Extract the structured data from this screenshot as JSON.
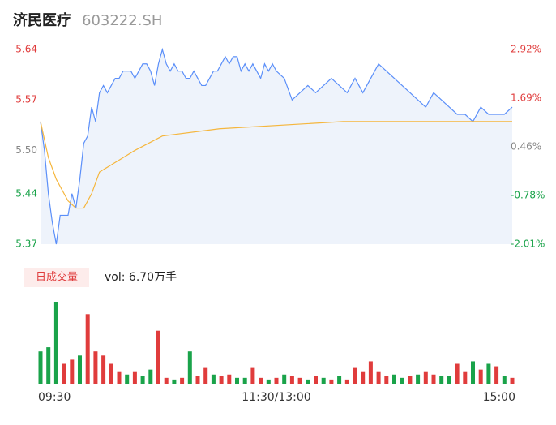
{
  "header": {
    "name": "济民医疗",
    "code": "603222.SH"
  },
  "chart_data": [
    {
      "type": "line",
      "xlim": [
        0,
        240
      ],
      "ylim": [
        5.37,
        5.64
      ],
      "yticks": [
        5.64,
        5.57,
        {
          "value": 5.5,
          "label": "5.50"
        },
        5.44,
        5.37
      ],
      "ytick_colors": [
        "#e03c3c",
        "#e03c3c",
        "#888888",
        "#1aa34a",
        "#1aa34a"
      ],
      "y2lim": [
        -2.01,
        2.92
      ],
      "y2ticks": [
        {
          "value": 2.92,
          "label": "2.92%"
        },
        {
          "value": 1.69,
          "label": "1.69%"
        },
        {
          "value": 0.46,
          "label": "0.46%"
        },
        {
          "value": -0.78,
          "label": "-0.78%"
        },
        {
          "value": -2.01,
          "label": "-2.01%"
        }
      ],
      "area_color": "#eef3fb",
      "series": [
        {
          "color": "#5b8ff9",
          "x": [
            0,
            2,
            4,
            6,
            8,
            10,
            12,
            14,
            16,
            18,
            20,
            22,
            24,
            26,
            28,
            30,
            32,
            34,
            36,
            38,
            40,
            42,
            44,
            46,
            48,
            50,
            52,
            54,
            56,
            58,
            60,
            62,
            64,
            66,
            68,
            70,
            72,
            74,
            76,
            78,
            80,
            82,
            84,
            86,
            88,
            90,
            92,
            94,
            96,
            98,
            100,
            102,
            104,
            106,
            108,
            110,
            112,
            114,
            116,
            118,
            120,
            124,
            128,
            132,
            136,
            140,
            144,
            148,
            152,
            156,
            160,
            164,
            168,
            172,
            176,
            180,
            184,
            188,
            192,
            196,
            200,
            204,
            208,
            212,
            216,
            220,
            224,
            228,
            232,
            236,
            240
          ],
          "values": [
            5.54,
            5.5,
            5.44,
            5.4,
            5.37,
            5.41,
            5.41,
            5.41,
            5.44,
            5.42,
            5.46,
            5.51,
            5.52,
            5.56,
            5.54,
            5.58,
            5.59,
            5.58,
            5.59,
            5.6,
            5.6,
            5.61,
            5.61,
            5.61,
            5.6,
            5.61,
            5.62,
            5.62,
            5.61,
            5.59,
            5.62,
            5.64,
            5.62,
            5.61,
            5.62,
            5.61,
            5.61,
            5.6,
            5.6,
            5.61,
            5.6,
            5.59,
            5.59,
            5.6,
            5.61,
            5.61,
            5.62,
            5.63,
            5.62,
            5.63,
            5.63,
            5.61,
            5.62,
            5.61,
            5.62,
            5.61,
            5.6,
            5.62,
            5.61,
            5.62,
            5.61,
            5.6,
            5.57,
            5.58,
            5.59,
            5.58,
            5.59,
            5.6,
            5.59,
            5.58,
            5.6,
            5.58,
            5.6,
            5.62,
            5.61,
            5.6,
            5.59,
            5.58,
            5.57,
            5.56,
            5.58,
            5.57,
            5.56,
            5.55,
            5.55,
            5.54,
            5.56,
            5.55,
            5.55,
            5.55,
            5.56
          ]
        },
        {
          "color": "#f5b63d",
          "x": [
            0,
            4,
            8,
            14,
            18,
            22,
            26,
            30,
            36,
            42,
            48,
            62,
            91,
            154,
            240
          ],
          "values": [
            5.54,
            5.49,
            5.46,
            5.43,
            5.42,
            5.42,
            5.44,
            5.47,
            5.48,
            5.49,
            5.5,
            5.52,
            5.53,
            5.54,
            5.54
          ]
        }
      ]
    },
    {
      "type": "bar",
      "title": "日成交量",
      "subtitle": "vol: 6.70万手",
      "xlim": [
        0,
        240
      ],
      "xticks": [
        {
          "value": 0,
          "label": "09:30"
        },
        {
          "value": 120,
          "label": "11:30/13:00"
        },
        {
          "value": 240,
          "label": "15:00"
        }
      ],
      "x": [
        0,
        4,
        8,
        12,
        16,
        20,
        24,
        28,
        32,
        36,
        40,
        44,
        48,
        52,
        56,
        60,
        64,
        68,
        72,
        76,
        80,
        84,
        88,
        92,
        96,
        100,
        104,
        108,
        112,
        116,
        120,
        124,
        128,
        132,
        136,
        140,
        144,
        148,
        152,
        156,
        160,
        164,
        168,
        172,
        176,
        180,
        184,
        188,
        192,
        196,
        200,
        204,
        208,
        212,
        216,
        220,
        224,
        228,
        232,
        236,
        240
      ],
      "values": [
        400,
        450,
        1000,
        250,
        300,
        350,
        850,
        400,
        350,
        250,
        150,
        120,
        150,
        100,
        180,
        650,
        80,
        60,
        80,
        400,
        100,
        200,
        120,
        100,
        120,
        80,
        80,
        200,
        80,
        60,
        80,
        120,
        100,
        80,
        60,
        100,
        80,
        60,
        100,
        60,
        200,
        150,
        280,
        150,
        100,
        120,
        80,
        100,
        120,
        150,
        120,
        100,
        100,
        250,
        150,
        280,
        180,
        250,
        220,
        100,
        80
      ],
      "colors": [
        "#1aa34a",
        "#1aa34a",
        "#1aa34a",
        "#e03c3c",
        "#e03c3c",
        "#1aa34a",
        "#e03c3c",
        "#e03c3c",
        "#e03c3c",
        "#e03c3c",
        "#e03c3c",
        "#1aa34a",
        "#e03c3c",
        "#1aa34a",
        "#1aa34a",
        "#e03c3c",
        "#e03c3c",
        "#1aa34a",
        "#e03c3c",
        "#1aa34a",
        "#e03c3c",
        "#e03c3c",
        "#1aa34a",
        "#e03c3c",
        "#e03c3c",
        "#1aa34a",
        "#1aa34a",
        "#e03c3c",
        "#e03c3c",
        "#1aa34a",
        "#e03c3c",
        "#1aa34a",
        "#e03c3c",
        "#e03c3c",
        "#1aa34a",
        "#e03c3c",
        "#1aa34a",
        "#e03c3c",
        "#1aa34a",
        "#e03c3c",
        "#e03c3c",
        "#e03c3c",
        "#e03c3c",
        "#e03c3c",
        "#e03c3c",
        "#1aa34a",
        "#1aa34a",
        "#e03c3c",
        "#1aa34a",
        "#e03c3c",
        "#e03c3c",
        "#1aa34a",
        "#1aa34a",
        "#e03c3c",
        "#e03c3c",
        "#1aa34a",
        "#e03c3c",
        "#1aa34a",
        "#e03c3c",
        "#1aa34a",
        "#e03c3c"
      ]
    }
  ]
}
